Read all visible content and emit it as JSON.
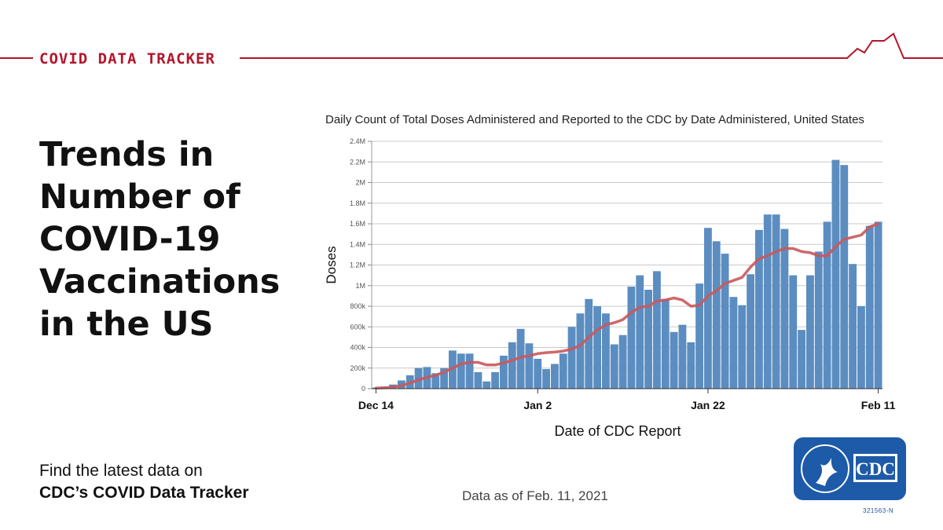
{
  "banner": {
    "title": "COVID DATA TRACKER"
  },
  "headline": [
    "Trends in",
    "Number of",
    "COVID-19",
    "Vaccinations",
    "in the US"
  ],
  "cta": {
    "line1": "Find the latest data on",
    "line2": "CDC’s COVID Data Tracker"
  },
  "data_as_of": "Data as of Feb. 11, 2021",
  "logo": {
    "text": "CDC",
    "code": "321563-N"
  },
  "colors": {
    "brand_red": "#b3162b",
    "bar": "#5b8dc0",
    "avg_line": "#c9585c",
    "cdc_blue": "#1d5aa8"
  },
  "chart_data": {
    "type": "bar",
    "title": "Daily Count of Total Doses Administered and Reported to the CDC by Date Administered, United States",
    "xlabel": "Date of CDC Report",
    "ylabel": "Doses",
    "ylim": [
      0,
      2400000
    ],
    "yticks": [
      0,
      200000,
      400000,
      600000,
      800000,
      1000000,
      1200000,
      1400000,
      1600000,
      1800000,
      2000000,
      2200000,
      2400000
    ],
    "ytick_labels": [
      "0",
      "200k",
      "400k",
      "600k",
      "800k",
      "1M",
      "1.2M",
      "1.4M",
      "1.6M",
      "1.8M",
      "2M",
      "2.2M",
      "2.4M"
    ],
    "xticks": [
      {
        "label": "Dec 14",
        "index": 0
      },
      {
        "label": "Jan 2",
        "index": 19
      },
      {
        "label": "Jan 22",
        "index": 39
      },
      {
        "label": "Feb 11",
        "index": 59
      }
    ],
    "grid": true,
    "series": [
      {
        "type": "bar",
        "values": [
          10000,
          20000,
          40000,
          80000,
          130000,
          200000,
          210000,
          150000,
          200000,
          370000,
          340000,
          340000,
          160000,
          70000,
          160000,
          320000,
          450000,
          580000,
          440000,
          290000,
          190000,
          240000,
          340000,
          600000,
          730000,
          870000,
          800000,
          730000,
          430000,
          520000,
          990000,
          1100000,
          960000,
          1140000,
          870000,
          550000,
          620000,
          450000,
          1020000,
          1560000,
          1430000,
          1310000,
          890000,
          810000,
          1110000,
          1540000,
          1690000,
          1690000,
          1550000,
          1100000,
          570000,
          1100000,
          1330000,
          1620000,
          2220000,
          2170000,
          1210000,
          800000,
          1580000,
          1620000
        ]
      },
      {
        "type": "line",
        "values": [
          5000,
          8000,
          15000,
          30000,
          55000,
          85000,
          110000,
          130000,
          160000,
          200000,
          240000,
          255000,
          255000,
          230000,
          230000,
          250000,
          275000,
          305000,
          320000,
          340000,
          350000,
          355000,
          365000,
          385000,
          420000,
          500000,
          570000,
          620000,
          640000,
          670000,
          740000,
          790000,
          800000,
          850000,
          860000,
          880000,
          860000,
          800000,
          810000,
          900000,
          950000,
          1020000,
          1050000,
          1080000,
          1180000,
          1260000,
          1290000,
          1330000,
          1360000,
          1360000,
          1330000,
          1320000,
          1290000,
          1290000,
          1380000,
          1450000,
          1470000,
          1490000,
          1570000,
          1600000
        ]
      }
    ]
  }
}
